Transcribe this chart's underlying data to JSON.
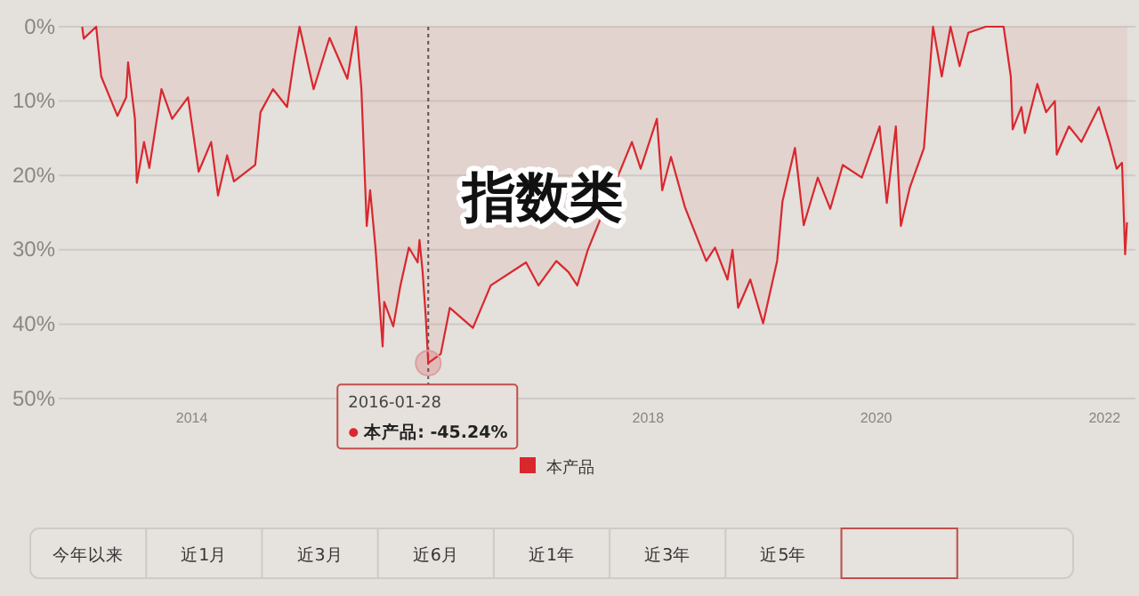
{
  "chart_data": {
    "type": "area",
    "x": [
      "2013-01-15",
      "2013-01-20",
      "2013-03-01",
      "2013-03-17",
      "2013-05-08",
      "2013-06-05",
      "2013-06-11",
      "2013-07-03",
      "2013-07-09",
      "2013-08-01",
      "2013-08-18",
      "2013-09-26",
      "2013-10-30",
      "2013-12-20",
      "2014-01-23",
      "2014-03-04",
      "2014-03-26",
      "2014-04-24",
      "2014-05-16",
      "2014-07-23",
      "2014-08-09",
      "2014-09-18",
      "2014-11-02",
      "2014-11-25",
      "2014-12-12",
      "2015-01-26",
      "2015-03-18",
      "2015-05-14",
      "2015-06-11",
      "2015-06-28",
      "2015-07-15",
      "2015-07-26",
      "2015-08-12",
      "2015-09-04",
      "2015-09-09",
      "2015-10-08",
      "2015-10-30",
      "2015-11-27",
      "2015-12-25",
      "2015-12-31",
      "2016-01-10",
      "2016-01-20",
      "2016-01-28",
      "2016-03-08",
      "2016-04-06",
      "2016-06-19",
      "2016-08-15",
      "2016-12-06",
      "2017-01-15",
      "2017-03-13",
      "2017-04-21",
      "2017-05-19",
      "2017-06-22",
      "2017-11-10",
      "2017-12-08",
      "2018-01-29",
      "2018-02-15",
      "2018-03-15",
      "2018-04-29",
      "2018-07-06",
      "2018-08-03",
      "2018-09-12",
      "2018-09-28",
      "2018-10-16",
      "2018-11-24",
      "2019-01-04",
      "2019-02-18",
      "2019-03-07",
      "2019-04-16",
      "2019-05-14",
      "2019-06-28",
      "2019-08-07",
      "2019-09-16",
      "2019-11-16",
      "2020-01-12",
      "2020-02-04",
      "2020-03-04",
      "2020-03-20",
      "2020-04-18",
      "2020-06-02",
      "2020-07-01",
      "2020-07-29",
      "2020-08-26",
      "2020-09-24",
      "2020-10-22",
      "2020-12-17",
      "2021-02-12",
      "2021-03-07",
      "2021-03-13",
      "2021-04-10",
      "2021-04-21",
      "2021-05-31",
      "2021-06-28",
      "2021-07-26",
      "2021-08-01",
      "2021-09-09",
      "2021-10-19",
      "2021-12-14",
      "2022-01-17",
      "2022-02-09",
      "2022-02-26",
      "2022-03-08",
      "2022-03-14"
    ],
    "series": [
      {
        "name": "本产品",
        "color": "#d9272e",
        "values": [
          0,
          -1.6,
          0,
          -6.7,
          -12,
          -9.5,
          -4.8,
          -12.4,
          -21,
          -15.5,
          -19,
          -8.4,
          -12.4,
          -9.5,
          -19.5,
          -15.5,
          -22.7,
          -17.3,
          -20.8,
          -18.6,
          -11.5,
          -8.4,
          -10.8,
          -4.3,
          0,
          -8.4,
          -1.5,
          -7,
          0,
          -8.4,
          -26.8,
          -22,
          -29.7,
          -43,
          -37,
          -40.3,
          -35,
          -29.7,
          -31.7,
          -28.7,
          -33,
          -39,
          -45.24,
          -44,
          -37.8,
          -40.5,
          -34.8,
          -31.7,
          -34.8,
          -31.5,
          -33,
          -34.8,
          -30,
          -15.5,
          -19.1,
          -12.4,
          -22,
          -17.5,
          -24.3,
          -31.5,
          -29.7,
          -34,
          -30,
          -37.8,
          -34,
          -39.9,
          -31.5,
          -23.5,
          -16.3,
          -26.7,
          -20.3,
          -24.5,
          -18.6,
          -20.3,
          -13.4,
          -23.7,
          -13.4,
          -26.8,
          -21.6,
          -16.3,
          0,
          -6.7,
          0,
          -5.3,
          -0.8,
          0,
          0,
          -6.7,
          -13.8,
          -10.8,
          -14.3,
          -7.7,
          -11.5,
          -10,
          -17.2,
          -13.4,
          -15.5,
          -10.8,
          -15.5,
          -19.1,
          -18.3,
          -30.6,
          -26.3
        ]
      }
    ],
    "xlim": [
      "2012-11-01",
      "2022-04-10"
    ],
    "xticks": [
      {
        "value": "2014-01-01",
        "label": "2014"
      },
      {
        "value": "2018-01-01",
        "label": "2018"
      },
      {
        "value": "2020-01-01",
        "label": "2020"
      },
      {
        "value": "2022-01-01",
        "label": "2022"
      }
    ],
    "ylim": [
      -50,
      0
    ],
    "yticks": [
      {
        "value": 0,
        "label": "0%"
      },
      {
        "value": -10,
        "label": "10%"
      },
      {
        "value": -20,
        "label": "20%"
      },
      {
        "value": -30,
        "label": "30%"
      },
      {
        "value": -40,
        "label": "40%"
      },
      {
        "value": -50,
        "label": "50%"
      }
    ],
    "grid": "y",
    "legend": "bottom",
    "ref_lines": [
      {
        "axis": "x",
        "value": "2016-01-28",
        "color": "#555555",
        "line_style": "dotted"
      }
    ],
    "annotations": [
      "指数类",
      {
        "text": "2016-01-28\n本产品: -45.24%",
        "x": "2016-01-28",
        "y": -45.24
      },
      "今年以来",
      "近1月",
      "近3月",
      "近6月",
      "近1年",
      "近3年",
      "近5年"
    ]
  }
}
